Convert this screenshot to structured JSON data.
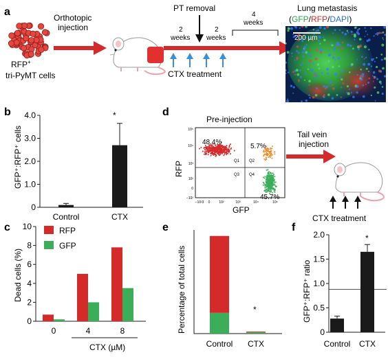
{
  "panel_a": {
    "letter": "a",
    "cells_label_line1": "RFP",
    "cells_label_sup": "+",
    "cells_label_line2": "tri-PyMT cells",
    "injection_line1": "Orthotopic",
    "injection_line2": "injection",
    "pt_removal": "PT removal",
    "weeks_a": "2",
    "weeks_b": "2",
    "weeks_c": "4",
    "weeks_word": "weeks",
    "ctx_treatment": "CTX treatment",
    "lung_title": "Lung metastasis",
    "stain_open": "(",
    "stain_gfp": "GFP",
    "stain_slash1": "/",
    "stain_rfp": "RFP",
    "stain_slash2": "/",
    "stain_dapi": "DAPI",
    "stain_close": ")",
    "scale_bar": "200 µm"
  },
  "panel_b": {
    "letter": "b",
    "ylabel": "GFP⁺:RFP⁺ cells",
    "sig_marker": "*",
    "chart_data": {
      "type": "bar",
      "categories": [
        "Control",
        "CTX"
      ],
      "values": [
        0.1,
        2.7
      ],
      "errors": [
        0.07,
        0.95
      ],
      "ylim": [
        0,
        4
      ],
      "yticks": [
        "0",
        "1.0",
        "2.0",
        "3.0",
        "4.0"
      ]
    }
  },
  "panel_c": {
    "letter": "c",
    "ylabel": "Dead cells (%)",
    "xlabel": "CTX (µM)",
    "legend_rfp": "RFP",
    "legend_gfp": "GFP",
    "chart_data": {
      "type": "bar",
      "categories": [
        "0",
        "4",
        "8"
      ],
      "series": [
        {
          "name": "RFP",
          "values": [
            0.7,
            5.0,
            7.8
          ]
        },
        {
          "name": "GFP",
          "values": [
            0.2,
            2.0,
            3.5
          ]
        }
      ],
      "ylim": [
        0,
        10
      ],
      "yticks": [
        "0",
        "2",
        "4",
        "6",
        "8",
        "10"
      ]
    }
  },
  "panel_d": {
    "letter": "d",
    "pre_injection": "Pre-injection",
    "ylabel": "RFP",
    "xlabel": "GFP",
    "q1_pct": "48.4%",
    "q2_pct": "5.7%",
    "q4_pct": "45.7%",
    "q1": "Q1",
    "q2": "Q2",
    "q3": "Q3",
    "q4": "Q4",
    "yticks": [
      "10⁵",
      "10⁴",
      "10³",
      "10²",
      "0",
      "−10²"
    ],
    "xticks": [
      "−10²3",
      "0",
      "10²",
      "10³",
      "10⁴",
      "10⁵"
    ],
    "tail_line1": "Tail vein",
    "tail_line2": "injection",
    "ctx_treatment": "CTX treatment"
  },
  "panel_e": {
    "letter": "e",
    "ylabel": "Percentage of total cells",
    "sig_marker": "*",
    "chart_data": {
      "type": "bar",
      "categories": [
        "Control",
        "CTX"
      ],
      "series": [
        {
          "name": "GFP",
          "values": [
            5.2,
            0.3
          ]
        },
        {
          "name": "RFP",
          "values": [
            19.3,
            0.2
          ]
        }
      ]
    }
  },
  "panel_f": {
    "letter": "f",
    "ylabel": "GFP⁺:RFP⁺ ratio",
    "sig_marker": "*",
    "chart_data": {
      "type": "bar",
      "categories": [
        "Control",
        "CTX"
      ],
      "values": [
        0.28,
        1.65
      ],
      "errors": [
        0.05,
        0.15
      ],
      "reference_line": 0.88,
      "ylim": [
        0,
        2.0
      ],
      "yticks": [
        "0",
        "0.5",
        "1.0",
        "1.5",
        "2.0"
      ]
    }
  },
  "colors": {
    "red": "#d42a2a",
    "green": "#3cae5a",
    "blue": "#3a8ed6",
    "black": "#1a1a1a"
  }
}
